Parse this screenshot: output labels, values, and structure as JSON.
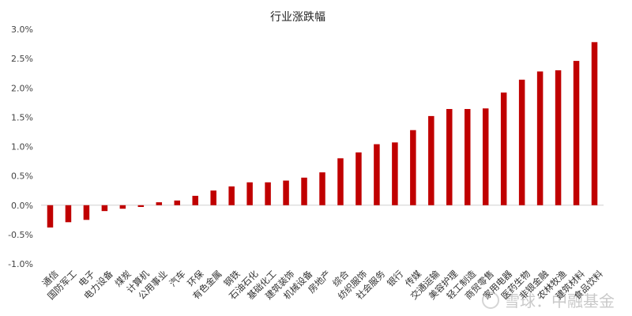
{
  "chart_data": {
    "type": "bar",
    "title": "行业涨跌幅",
    "xlabel": "",
    "ylabel": "",
    "ylim": [
      -0.01,
      0.03
    ],
    "yticks": [
      0.03,
      0.025,
      0.02,
      0.015,
      0.01,
      0.005,
      0.0,
      -0.005,
      -0.01
    ],
    "ytick_labels": [
      "3.0%",
      "2.5%",
      "2.0%",
      "1.5%",
      "1.0%",
      "0.5%",
      "0.0%",
      "-0.5%",
      "-1.0%"
    ],
    "grid": false,
    "bar_color": "#c00000",
    "categories": [
      "通信",
      "国防军工",
      "电子",
      "电力设备",
      "煤炭",
      "计算机",
      "公用事业",
      "汽车",
      "环保",
      "有色金属",
      "钢铁",
      "石油石化",
      "基础化工",
      "建筑装饰",
      "机械设备",
      "房地产",
      "综合",
      "纺织服饰",
      "社会服务",
      "银行",
      "传媒",
      "交通运输",
      "美容护理",
      "轻工制造",
      "商贸零售",
      "家用电器",
      "医药生物",
      "非银金融",
      "农林牧渔",
      "建筑材料",
      "食品饮料"
    ],
    "values": [
      -0.0038,
      -0.0029,
      -0.0025,
      -0.001,
      -0.0006,
      -0.0003,
      0.0005,
      0.0008,
      0.0016,
      0.0025,
      0.0032,
      0.0039,
      0.0039,
      0.0042,
      0.0047,
      0.0056,
      0.008,
      0.009,
      0.0104,
      0.0107,
      0.0128,
      0.0152,
      0.0164,
      0.0164,
      0.0165,
      0.0192,
      0.0214,
      0.0228,
      0.023,
      0.0246,
      0.0278
    ]
  },
  "watermark": {
    "text": "雪球：中融基金"
  }
}
